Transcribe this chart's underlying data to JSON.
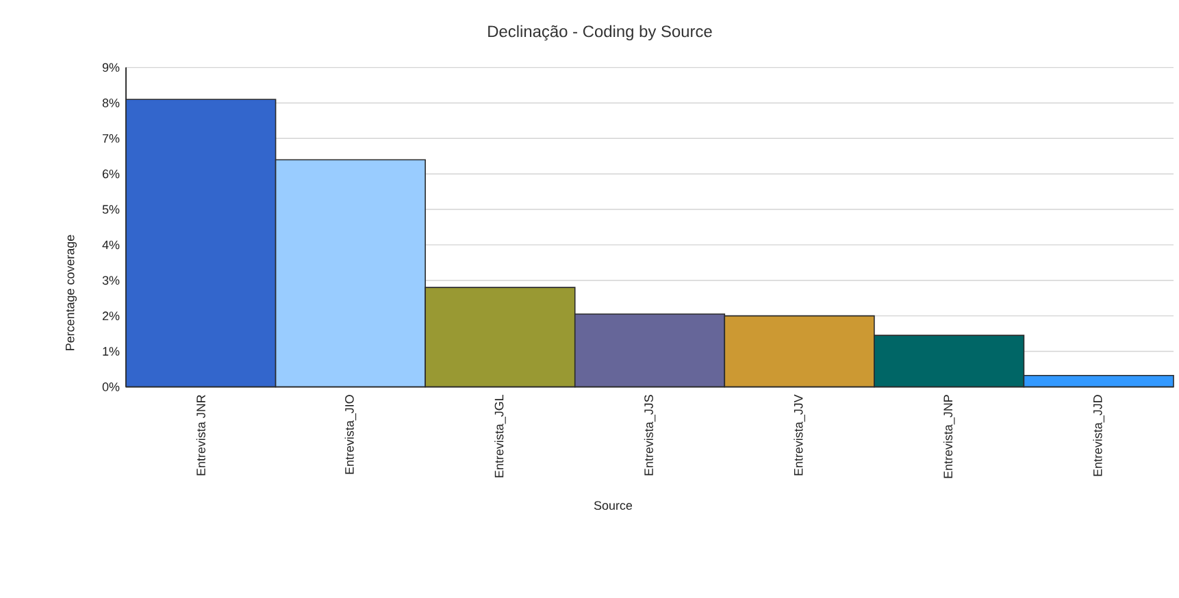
{
  "chart_data": {
    "type": "bar",
    "title": "Declinação - Coding by Source",
    "xlabel": "Source",
    "ylabel": "Percentage coverage",
    "categories": [
      "Entrevista JNR",
      "Entrevista_JIO",
      "Entrevista_JGL",
      "Entrevista_JJS",
      "Entrevista_JJV",
      "Entrevista_JNP",
      "Entrevista_JJD"
    ],
    "values": [
      8.1,
      6.4,
      2.8,
      2.05,
      2.0,
      1.45,
      0.32
    ],
    "colors": [
      "#3366cc",
      "#99ccff",
      "#999933",
      "#666699",
      "#cc9933",
      "#006666",
      "#3399ff"
    ],
    "ylim": [
      0,
      9
    ],
    "yticks": [
      {
        "value": 0,
        "label": "0%"
      },
      {
        "value": 1,
        "label": "1%"
      },
      {
        "value": 2,
        "label": "2%"
      },
      {
        "value": 3,
        "label": "3%"
      },
      {
        "value": 4,
        "label": "4%"
      },
      {
        "value": 5,
        "label": "5%"
      },
      {
        "value": 6,
        "label": "6%"
      },
      {
        "value": 7,
        "label": "7%"
      },
      {
        "value": 8,
        "label": "8%"
      },
      {
        "value": 9,
        "label": "9%"
      }
    ],
    "grid": "y"
  }
}
